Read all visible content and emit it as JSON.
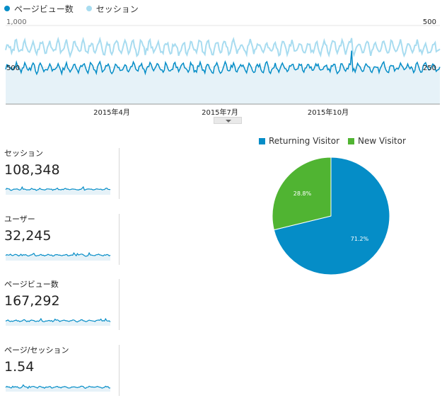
{
  "colors": {
    "pageviews": "#058dc7",
    "sessions": "#a8dcf0",
    "area": "#e6f2f8",
    "returning": "#058dc7",
    "new": "#50b432"
  },
  "chart_data": [
    {
      "type": "line",
      "title": "",
      "series": [
        {
          "name": "ページビュー数",
          "axis": "left",
          "min": 330,
          "max": 680,
          "avg": 460
        },
        {
          "name": "セッション",
          "axis": "right",
          "min": 240,
          "max": 420,
          "avg": 300
        }
      ],
      "x_ticks": [
        "2015年4月",
        "2015年7月",
        "2015年10月"
      ],
      "y_left": {
        "ticks": [
          "1,000",
          "500"
        ],
        "ylim": [
          0,
          1000
        ]
      },
      "y_right": {
        "ticks": [
          "500",
          "250"
        ],
        "ylim": [
          0,
          500
        ]
      },
      "days": 365
    },
    {
      "type": "pie",
      "legend": [
        "Returning Visitor",
        "New Visitor"
      ],
      "values": [
        71.2,
        28.8
      ],
      "labels": [
        "71.2%",
        "28.8%"
      ]
    }
  ],
  "metrics": [
    {
      "label": "セッション",
      "value": "108,348"
    },
    {
      "label": "ユーザー",
      "value": "32,245"
    },
    {
      "label": "ページビュー数",
      "value": "167,292"
    },
    {
      "label": "ページ/セッション",
      "value": "1.54"
    }
  ]
}
